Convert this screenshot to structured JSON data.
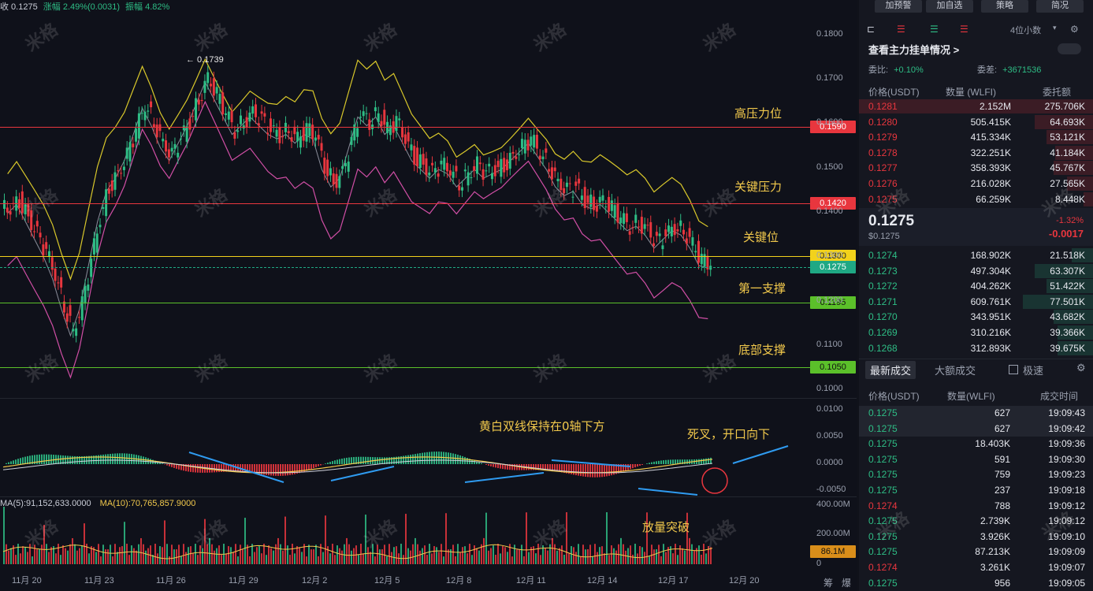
{
  "top_stats": {
    "close": "收 0.1275",
    "change": "涨幅 2.49%(0.0031)",
    "amplitude": "振幅 4.82%"
  },
  "peak_label": "← 0.1739",
  "price_axis": [
    "0.1800",
    "0.1700",
    "0.1600",
    "0.1500",
    "0.1400",
    "0.1300",
    "0.1200",
    "0.1100",
    "0.1000"
  ],
  "levels": [
    {
      "name": "高压力位",
      "price": "0.1590",
      "color": "#e8363e",
      "text_color": "#ffffff"
    },
    {
      "name": "关键压力",
      "price": "0.1420",
      "color": "#e8363e",
      "text_color": "#ffffff"
    },
    {
      "name": "关键位",
      "price": "0.1300",
      "color": "#f2d21b",
      "text_color": "#222222"
    },
    {
      "name": "第一支撑",
      "price": "0.1195",
      "color": "#5bc02a",
      "text_color": "#111111"
    },
    {
      "name": "底部支撑",
      "price": "0.1050",
      "color": "#5bc02a",
      "text_color": "#111111"
    }
  ],
  "current_price_tag": "0.1275",
  "macd_axis": [
    "0.0100",
    "0.0050",
    "0.0000",
    "-0.0050"
  ],
  "macd_note": "黄白双线保持在0轴下方",
  "macd_note2": "死叉，开口向下",
  "volume_header": {
    "ma5": "MA(5):91,152,633.0000",
    "ma10": "MA(10):70,765,857.9000"
  },
  "volume_axis": [
    "400.00M",
    "200.00M",
    "0"
  ],
  "volume_tag": "86.1M",
  "volume_note": "放量突破",
  "x_labels": [
    "11月 20",
    "11月 23",
    "11月 26",
    "11月 29",
    "12月 2",
    "12月 5",
    "12月 8",
    "12月 11",
    "12月 14",
    "12月 17",
    "12月 20"
  ],
  "x_icons": [
    "筹",
    "爆"
  ],
  "watermark": "米格",
  "side": {
    "buttons": [
      "加预警",
      "加自选",
      "策略",
      "简况"
    ],
    "decimals": "4位小数",
    "title": "查看主力挂单情况 >",
    "weibi_label": "委比:",
    "weibi": "+0.10%",
    "weicha_label": "委差:",
    "weicha": "+3671536",
    "col_price": "价格(USDT)",
    "col_qty": "数量 (WLFI)",
    "col_total": "委托额",
    "asks": [
      [
        "0.1281",
        "2.152M",
        "275.706K",
        1.0
      ],
      [
        "0.1280",
        "505.415K",
        "64.693K",
        0.25
      ],
      [
        "0.1279",
        "415.334K",
        "53.121K",
        0.2
      ],
      [
        "0.1278",
        "322.251K",
        "41.184K",
        0.16
      ],
      [
        "0.1277",
        "358.393K",
        "45.767K",
        0.17
      ],
      [
        "0.1276",
        "216.028K",
        "27.565K",
        0.11
      ],
      [
        "0.1275",
        "66.259K",
        "8.448K",
        0.04
      ]
    ],
    "last_price": "0.1275",
    "last_price_usd": "$0.1275",
    "pct": "-1.32%",
    "chg": "-0.0017",
    "bids": [
      [
        "0.1274",
        "168.902K",
        "21.518K",
        0.09
      ],
      [
        "0.1273",
        "497.304K",
        "63.307K",
        0.25
      ],
      [
        "0.1272",
        "404.262K",
        "51.422K",
        0.2
      ],
      [
        "0.1271",
        "609.761K",
        "77.501K",
        0.3
      ],
      [
        "0.1270",
        "343.951K",
        "43.682K",
        0.17
      ],
      [
        "0.1269",
        "310.216K",
        "39.366K",
        0.15
      ],
      [
        "0.1268",
        "312.893K",
        "39.675K",
        0.15
      ]
    ],
    "tabs": [
      "最新成交",
      "大额成交"
    ],
    "fast": "极速",
    "trade_cols": [
      "价格(USDT)",
      "数量(WLFI)",
      "成交时间"
    ],
    "trades": [
      [
        "0.1275",
        "627",
        "19:09:43",
        "g"
      ],
      [
        "0.1275",
        "627",
        "19:09:42",
        "g"
      ],
      [
        "0.1275",
        "18.403K",
        "19:09:36",
        "g"
      ],
      [
        "0.1275",
        "591",
        "19:09:30",
        "g"
      ],
      [
        "0.1275",
        "759",
        "19:09:23",
        "g"
      ],
      [
        "0.1275",
        "237",
        "19:09:18",
        "g"
      ],
      [
        "0.1274",
        "788",
        "19:09:12",
        "r"
      ],
      [
        "0.1275",
        "2.739K",
        "19:09:12",
        "g"
      ],
      [
        "0.1275",
        "3.926K",
        "19:09:10",
        "g"
      ],
      [
        "0.1275",
        "87.213K",
        "19:09:09",
        "g"
      ],
      [
        "0.1274",
        "3.261K",
        "19:09:07",
        "r"
      ],
      [
        "0.1275",
        "956",
        "19:09:05",
        "g"
      ]
    ]
  }
}
